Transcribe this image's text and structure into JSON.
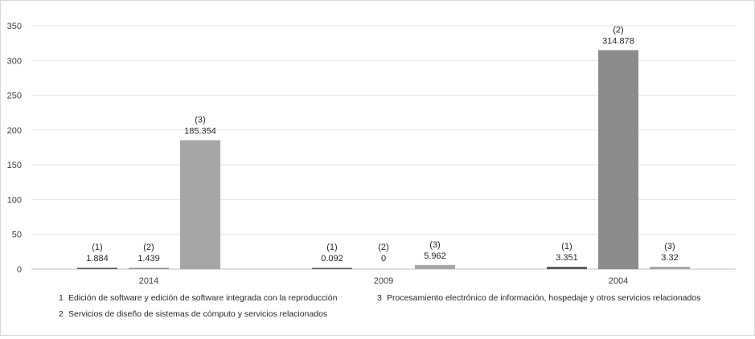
{
  "chart_data": {
    "type": "bar",
    "categories": [
      "2014",
      "2009",
      "2004"
    ],
    "series": [
      {
        "key": "(1)",
        "values": [
          1.884,
          0.092,
          3.351
        ],
        "labels": [
          "1.884",
          "0.092",
          "3.351"
        ],
        "color": "#595959"
      },
      {
        "key": "(2)",
        "values": [
          1.439,
          0,
          314.878
        ],
        "labels": [
          "1.439",
          "0",
          "314.878"
        ],
        "color": "#8c8c8c"
      },
      {
        "key": "(3)",
        "values": [
          185.354,
          5.962,
          3.32
        ],
        "labels": [
          "185.354",
          "5.962",
          "3.32"
        ],
        "color": "#a6a6a6"
      }
    ],
    "yticks": [
      0,
      50,
      100,
      150,
      200,
      250,
      300,
      350
    ],
    "ylim": [
      0,
      350
    ],
    "grid": true,
    "legend_position": "bottom",
    "legend": [
      {
        "number": "1",
        "text": "Edición de software y edición de software integrada con la reproducción"
      },
      {
        "number": "2",
        "text": "Servicios de diseño de sistemas de cómputo y servicios relacionados"
      },
      {
        "number": "3",
        "text": "Procesamiento electrónico de información, hospedaje y otros servicios relacionados"
      }
    ]
  }
}
